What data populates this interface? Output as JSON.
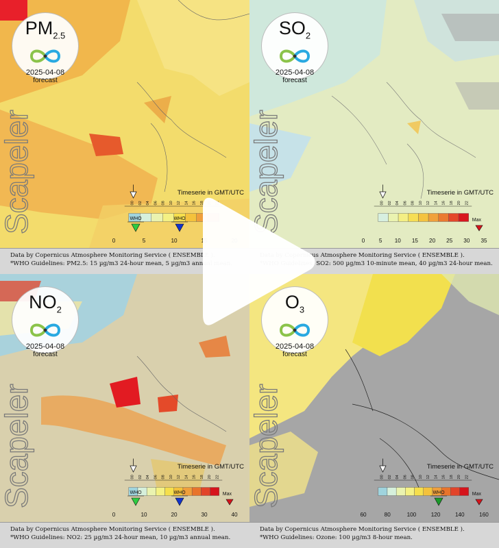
{
  "panels": [
    {
      "pollutant_main": "PM",
      "pollutant_sub": "2.5",
      "date": "2025-04-08",
      "forecast_label": "forecast",
      "brand": "Scapeler",
      "timeserie_label": "Timeserie in GMT/UTC",
      "hours": [
        "00",
        "02",
        "04",
        "06",
        "08",
        "10",
        "12",
        "14",
        "16",
        "18",
        "20",
        "22"
      ],
      "scale_ticks": [
        "0",
        "5",
        "10",
        "15",
        "20"
      ],
      "who_labels": [
        "WHO",
        "WHO"
      ],
      "max_label": "",
      "caption_line1": "Data by Copernicus Atmosphere Monitoring Service ( ENSEMBLE ).",
      "caption_line2": "*WHO Guidelines: PM2.5: 15 µg/m3 24-hour mean, 5 µg/m3 annual mean.",
      "scale_colors": [
        "#9fd4de",
        "#d6f0dc",
        "#eaf3b0",
        "#f4f184",
        "#f6df4c",
        "#f4c23c",
        "#ef9f3c",
        "#e8742c"
      ]
    },
    {
      "pollutant_main": "SO",
      "pollutant_sub": "2",
      "date": "2025-04-08",
      "forecast_label": "forecast",
      "brand": "Scapeler",
      "timeserie_label": "Timeserie in GMT/UTC",
      "hours": [
        "00",
        "02",
        "04",
        "06",
        "08",
        "10",
        "12",
        "14",
        "16",
        "18",
        "20",
        "22"
      ],
      "scale_ticks": [
        "0",
        "5",
        "10",
        "15",
        "20",
        "25",
        "30",
        "35"
      ],
      "who_labels": [],
      "max_label": "Max",
      "caption_line1": "Data by Copernicus Atmosphere Monitoring Service ( ENSEMBLE ).",
      "caption_line2": "*WHO Guidelines: SO2: 500 µg/m3 10-minute mean, 40 µg/m3 24-hour mean.",
      "scale_colors": [
        "#d7efe0",
        "#eaf3b0",
        "#f4ef84",
        "#f6de54",
        "#f4c340",
        "#f0a13c",
        "#ea7a30",
        "#e4482a",
        "#d8171e"
      ]
    },
    {
      "pollutant_main": "NO",
      "pollutant_sub": "2",
      "date": "2025-04-08",
      "forecast_label": "forecast",
      "brand": "Scapeler",
      "timeserie_label": "Timeserie in GMT/UTC",
      "hours": [
        "00",
        "02",
        "04",
        "06",
        "08",
        "10",
        "12",
        "14",
        "16",
        "18",
        "20",
        "22"
      ],
      "scale_ticks": [
        "0",
        "10",
        "20",
        "30",
        "40"
      ],
      "who_labels": [
        "WHO",
        "WHO"
      ],
      "max_label": "Max",
      "caption_line1": "Data by Copernicus Atmosphere Monitoring Service ( ENSEMBLE ).",
      "caption_line2": "*WHO Guidelines: NO2: 25 µg/m3 24-hour mean, 10 µg/m3 annual mean.",
      "scale_colors": [
        "#9fd4de",
        "#d6f0dc",
        "#eaf3b0",
        "#f4f184",
        "#f6df4c",
        "#f4c23c",
        "#ef9f3c",
        "#e8742c",
        "#e2442a",
        "#d6141c"
      ]
    },
    {
      "pollutant_main": "O",
      "pollutant_sub": "3",
      "date": "2025-04-08",
      "forecast_label": "forecast",
      "brand": "Scapeler",
      "timeserie_label": "Timeserie in GMT/UTC",
      "hours": [
        "00",
        "02",
        "04",
        "06",
        "08",
        "10",
        "12",
        "14",
        "16",
        "18",
        "20",
        "22"
      ],
      "scale_ticks": [
        "60",
        "80",
        "100",
        "120",
        "140",
        "160"
      ],
      "who_labels": [
        "WHO"
      ],
      "max_label": "Max",
      "caption_line1": "Data by Copernicus Atmosphere Monitoring Service ( ENSEMBLE ).",
      "caption_line2": "*WHO Guidelines: Ozone: 100 µg/m3 8-hour mean.",
      "scale_colors": [
        "#9fd4de",
        "#d6f0dc",
        "#eaf3b0",
        "#f4f184",
        "#f6df4c",
        "#f4c23c",
        "#ef9f3c",
        "#e8742c",
        "#e2442a",
        "#d6141c"
      ]
    }
  ]
}
